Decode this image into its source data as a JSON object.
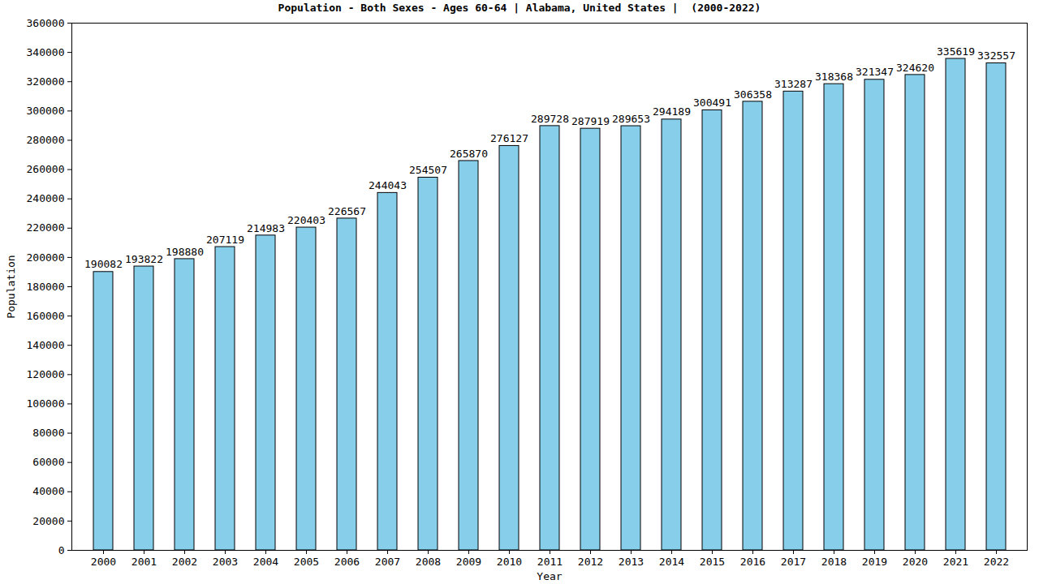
{
  "chart_data": {
    "type": "bar",
    "title": "Population - Both Sexes - Ages 60-64 | Alabama, United States |  (2000-2022)",
    "x_label": "Year",
    "y_label": "Population",
    "categories": [
      "2000",
      "2001",
      "2002",
      "2003",
      "2004",
      "2005",
      "2006",
      "2007",
      "2008",
      "2009",
      "2010",
      "2011",
      "2012",
      "2013",
      "2014",
      "2015",
      "2016",
      "2017",
      "2018",
      "2019",
      "2020",
      "2021",
      "2022"
    ],
    "values": [
      190082,
      193822,
      198880,
      207119,
      214983,
      220403,
      226567,
      244043,
      254507,
      265870,
      276127,
      289728,
      287919,
      289653,
      294189,
      300491,
      306358,
      313287,
      318368,
      321347,
      324620,
      335619,
      332557
    ],
    "color": "#87ceeb",
    "ylim": [
      0,
      360000
    ],
    "yticks": [
      0,
      20000,
      40000,
      60000,
      80000,
      100000,
      120000,
      140000,
      160000,
      180000,
      200000,
      220000,
      240000,
      260000,
      280000,
      300000,
      320000,
      340000,
      360000
    ],
    "grid": false,
    "data_labels": true
  }
}
